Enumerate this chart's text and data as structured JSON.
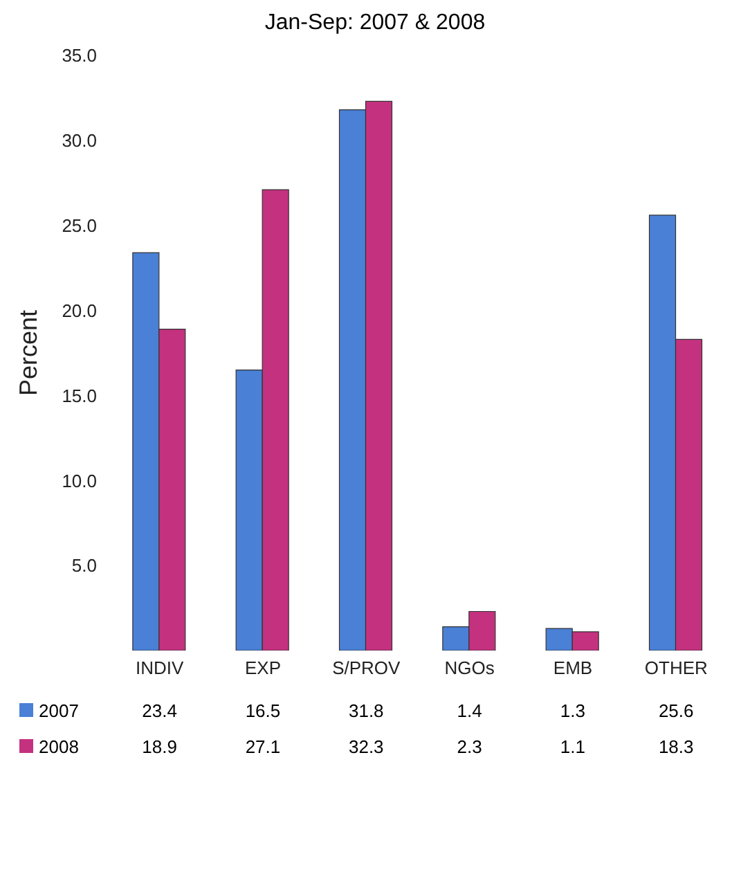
{
  "chart_data": {
    "type": "bar",
    "title": "Jan-Sep: 2007 & 2008",
    "ylabel": "Percent",
    "categories": [
      "INDIV",
      "EXP",
      "S/PROV",
      "NGOs",
      "EMB",
      "OTHER"
    ],
    "series": [
      {
        "name": "2007",
        "color": "#4a80d6",
        "values": [
          23.4,
          16.5,
          31.8,
          1.4,
          1.3,
          25.6
        ]
      },
      {
        "name": "2008",
        "color": "#c4317f",
        "values": [
          18.9,
          27.1,
          32.3,
          2.3,
          1.1,
          18.3
        ]
      }
    ],
    "ylim": [
      0,
      35
    ],
    "yticks": [
      {
        "value": 5,
        "label": "5.0"
      },
      {
        "value": 10,
        "label": "10.0"
      },
      {
        "value": 15,
        "label": "15.0"
      },
      {
        "value": 20,
        "label": "20.0"
      },
      {
        "value": 25,
        "label": "25.0"
      },
      {
        "value": 30,
        "label": "30.0"
      },
      {
        "value": 35,
        "label": "35.0"
      }
    ],
    "data_labels": true,
    "legend": "bottom left",
    "grid": false
  }
}
